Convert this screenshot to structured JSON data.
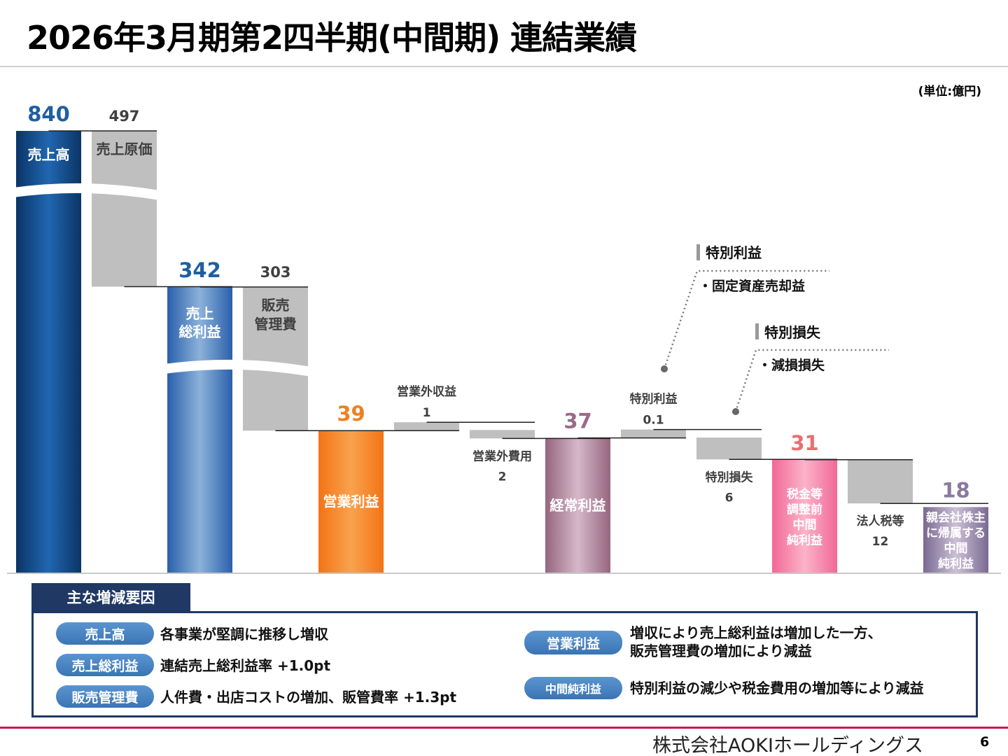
{
  "title": "2026年3月期第2四半期(中間期) 連結業績",
  "unit": "(単位:億円)",
  "chart_data": {
    "type": "bar",
    "subtype": "waterfall",
    "axis_broken": true,
    "bars": [
      {
        "label": "売上高",
        "value_label": "840",
        "value": 840,
        "kind": "total",
        "color": "#164a8a",
        "value_color": "#1f5fa0"
      },
      {
        "label": "売上原価",
        "value_label": "497",
        "value": 497,
        "kind": "decrease",
        "color": "#bfbfbf",
        "value_color": "#404040"
      },
      {
        "label": "売上\n総利益",
        "value_label": "342",
        "value": 342,
        "kind": "total",
        "color": "#3a72b8",
        "value_color": "#1f5fa0"
      },
      {
        "label": "販売\n管理費",
        "value_label": "303",
        "value": 303,
        "kind": "decrease",
        "color": "#bfbfbf",
        "value_color": "#404040"
      },
      {
        "label": "営業利益",
        "value_label": "39",
        "value": 39,
        "kind": "total",
        "color": "#f57f20",
        "value_color": "#f08020"
      },
      {
        "label": "営業外収益",
        "value_label": "1",
        "value": 1,
        "kind": "increase",
        "color": "#bfbfbf",
        "value_color": "#404040"
      },
      {
        "label": "営業外費用",
        "value_label": "2",
        "value": 2,
        "kind": "decrease",
        "color": "#bfbfbf",
        "value_color": "#404040"
      },
      {
        "label": "経常利益",
        "value_label": "37",
        "value": 37,
        "kind": "total",
        "color": "#a87a94",
        "value_color": "#9a6a86"
      },
      {
        "label": "特別利益",
        "value_label": "0.1",
        "value": 0.1,
        "kind": "increase",
        "color": "#bfbfbf",
        "value_color": "#404040"
      },
      {
        "label": "特別損失",
        "value_label": "6",
        "value": 6,
        "kind": "decrease",
        "color": "#bfbfbf",
        "value_color": "#404040"
      },
      {
        "label": "税金等\n調整前\n中間\n純利益",
        "value_label": "31",
        "value": 31,
        "kind": "total",
        "color": "#f47aa2",
        "value_color": "#e87070"
      },
      {
        "label": "法人税等",
        "value_label": "12",
        "value": 12,
        "kind": "decrease",
        "color": "#bfbfbf",
        "value_color": "#404040"
      },
      {
        "label": "親会社株主\nに帰属する\n中間\n純利益",
        "value_label": "18",
        "value": 18,
        "kind": "total",
        "color": "#8e7ea4",
        "value_color": "#8a7aa0"
      }
    ],
    "annotations": [
      {
        "heading": "特別利益",
        "item": "・固定資産売却益"
      },
      {
        "heading": "特別損失",
        "item": "・減損損失"
      }
    ]
  },
  "factors": {
    "heading": "主な増減要因",
    "left": [
      {
        "tag": "売上高",
        "text": "各事業が堅調に推移し増収"
      },
      {
        "tag": "売上総利益",
        "text": "連結売上総利益率 +1.0pt"
      },
      {
        "tag": "販売管理費",
        "text": "人件費・出店コストの増加、販管費率 +1.3pt"
      }
    ],
    "right": [
      {
        "tag": "営業利益",
        "text_lines": [
          "増収により売上総利益は増加した一方、",
          "販売管理費の増加により減益"
        ]
      },
      {
        "tag": "中間純利益",
        "text_lines": [
          "特別利益の減少や税金費用の増加等により減益"
        ]
      }
    ]
  },
  "footer": {
    "company": "株式会社AOKIホールディングス",
    "page": "6"
  }
}
